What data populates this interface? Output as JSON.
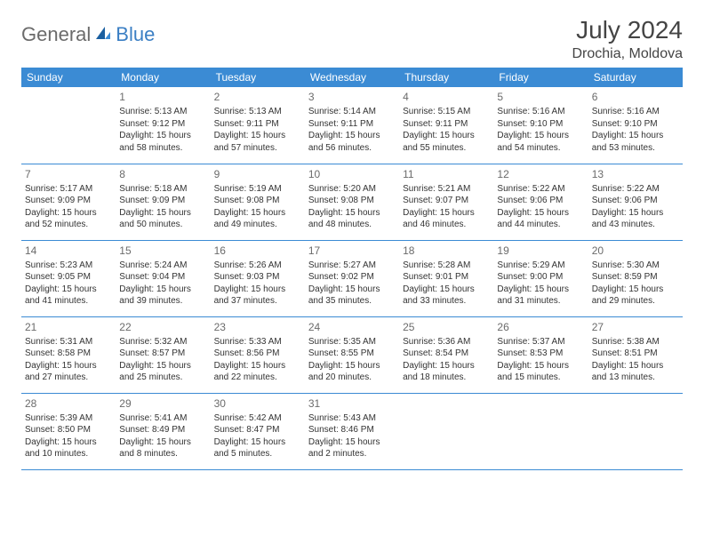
{
  "brand": {
    "part1": "General",
    "part2": "Blue"
  },
  "title": "July 2024",
  "location": "Drochia, Moldova",
  "colors": {
    "header_bg": "#3b8bd4",
    "header_text": "#ffffff",
    "border": "#3b8bd4",
    "brand_gray": "#6b6b6b",
    "brand_blue": "#3b7fc4"
  },
  "weekdays": [
    "Sunday",
    "Monday",
    "Tuesday",
    "Wednesday",
    "Thursday",
    "Friday",
    "Saturday"
  ],
  "weeks": [
    [
      null,
      {
        "day": "1",
        "sunrise": "5:13 AM",
        "sunset": "9:12 PM",
        "daylight": "15 hours and 58 minutes."
      },
      {
        "day": "2",
        "sunrise": "5:13 AM",
        "sunset": "9:11 PM",
        "daylight": "15 hours and 57 minutes."
      },
      {
        "day": "3",
        "sunrise": "5:14 AM",
        "sunset": "9:11 PM",
        "daylight": "15 hours and 56 minutes."
      },
      {
        "day": "4",
        "sunrise": "5:15 AM",
        "sunset": "9:11 PM",
        "daylight": "15 hours and 55 minutes."
      },
      {
        "day": "5",
        "sunrise": "5:16 AM",
        "sunset": "9:10 PM",
        "daylight": "15 hours and 54 minutes."
      },
      {
        "day": "6",
        "sunrise": "5:16 AM",
        "sunset": "9:10 PM",
        "daylight": "15 hours and 53 minutes."
      }
    ],
    [
      {
        "day": "7",
        "sunrise": "5:17 AM",
        "sunset": "9:09 PM",
        "daylight": "15 hours and 52 minutes."
      },
      {
        "day": "8",
        "sunrise": "5:18 AM",
        "sunset": "9:09 PM",
        "daylight": "15 hours and 50 minutes."
      },
      {
        "day": "9",
        "sunrise": "5:19 AM",
        "sunset": "9:08 PM",
        "daylight": "15 hours and 49 minutes."
      },
      {
        "day": "10",
        "sunrise": "5:20 AM",
        "sunset": "9:08 PM",
        "daylight": "15 hours and 48 minutes."
      },
      {
        "day": "11",
        "sunrise": "5:21 AM",
        "sunset": "9:07 PM",
        "daylight": "15 hours and 46 minutes."
      },
      {
        "day": "12",
        "sunrise": "5:22 AM",
        "sunset": "9:06 PM",
        "daylight": "15 hours and 44 minutes."
      },
      {
        "day": "13",
        "sunrise": "5:22 AM",
        "sunset": "9:06 PM",
        "daylight": "15 hours and 43 minutes."
      }
    ],
    [
      {
        "day": "14",
        "sunrise": "5:23 AM",
        "sunset": "9:05 PM",
        "daylight": "15 hours and 41 minutes."
      },
      {
        "day": "15",
        "sunrise": "5:24 AM",
        "sunset": "9:04 PM",
        "daylight": "15 hours and 39 minutes."
      },
      {
        "day": "16",
        "sunrise": "5:26 AM",
        "sunset": "9:03 PM",
        "daylight": "15 hours and 37 minutes."
      },
      {
        "day": "17",
        "sunrise": "5:27 AM",
        "sunset": "9:02 PM",
        "daylight": "15 hours and 35 minutes."
      },
      {
        "day": "18",
        "sunrise": "5:28 AM",
        "sunset": "9:01 PM",
        "daylight": "15 hours and 33 minutes."
      },
      {
        "day": "19",
        "sunrise": "5:29 AM",
        "sunset": "9:00 PM",
        "daylight": "15 hours and 31 minutes."
      },
      {
        "day": "20",
        "sunrise": "5:30 AM",
        "sunset": "8:59 PM",
        "daylight": "15 hours and 29 minutes."
      }
    ],
    [
      {
        "day": "21",
        "sunrise": "5:31 AM",
        "sunset": "8:58 PM",
        "daylight": "15 hours and 27 minutes."
      },
      {
        "day": "22",
        "sunrise": "5:32 AM",
        "sunset": "8:57 PM",
        "daylight": "15 hours and 25 minutes."
      },
      {
        "day": "23",
        "sunrise": "5:33 AM",
        "sunset": "8:56 PM",
        "daylight": "15 hours and 22 minutes."
      },
      {
        "day": "24",
        "sunrise": "5:35 AM",
        "sunset": "8:55 PM",
        "daylight": "15 hours and 20 minutes."
      },
      {
        "day": "25",
        "sunrise": "5:36 AM",
        "sunset": "8:54 PM",
        "daylight": "15 hours and 18 minutes."
      },
      {
        "day": "26",
        "sunrise": "5:37 AM",
        "sunset": "8:53 PM",
        "daylight": "15 hours and 15 minutes."
      },
      {
        "day": "27",
        "sunrise": "5:38 AM",
        "sunset": "8:51 PM",
        "daylight": "15 hours and 13 minutes."
      }
    ],
    [
      {
        "day": "28",
        "sunrise": "5:39 AM",
        "sunset": "8:50 PM",
        "daylight": "15 hours and 10 minutes."
      },
      {
        "day": "29",
        "sunrise": "5:41 AM",
        "sunset": "8:49 PM",
        "daylight": "15 hours and 8 minutes."
      },
      {
        "day": "30",
        "sunrise": "5:42 AM",
        "sunset": "8:47 PM",
        "daylight": "15 hours and 5 minutes."
      },
      {
        "day": "31",
        "sunrise": "5:43 AM",
        "sunset": "8:46 PM",
        "daylight": "15 hours and 2 minutes."
      },
      null,
      null,
      null
    ]
  ],
  "labels": {
    "sunrise": "Sunrise:",
    "sunset": "Sunset:",
    "daylight": "Daylight:"
  }
}
